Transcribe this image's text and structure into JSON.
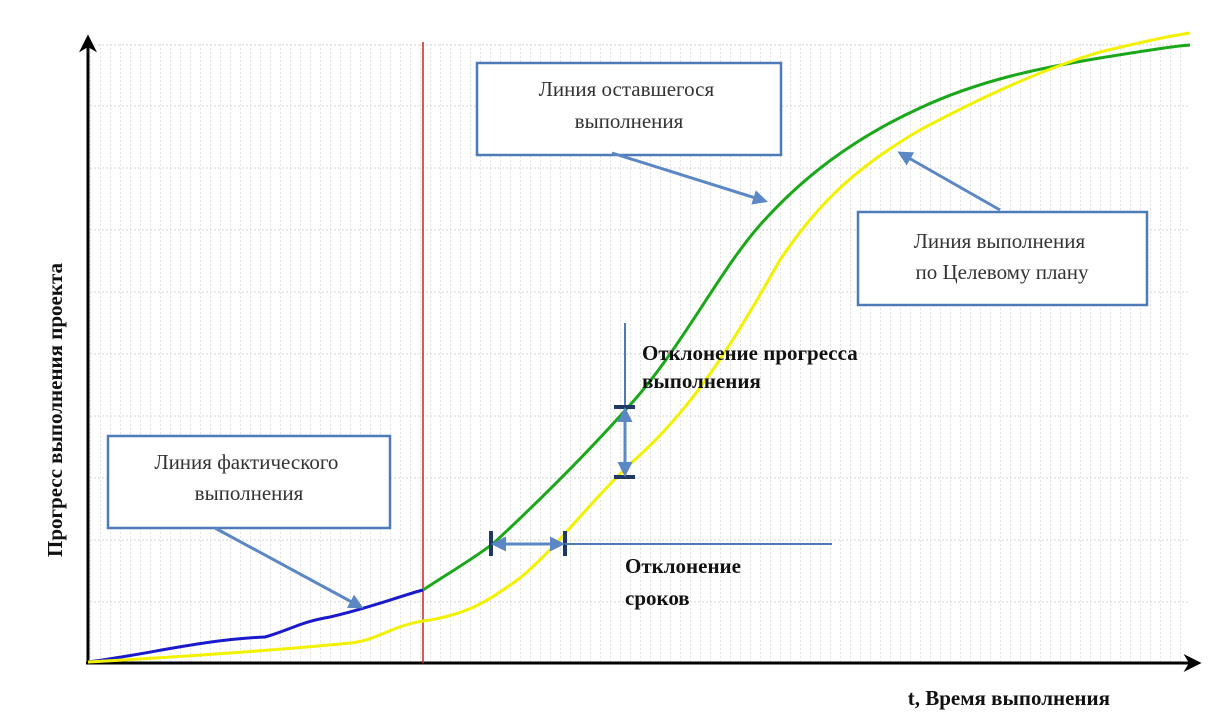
{
  "axes": {
    "x_label": "t, Время выполнения",
    "y_label": "Прогресс выполнения проекта"
  },
  "callouts": [
    {
      "lines": [
        "Линия оставшегося",
        "выполнения"
      ]
    },
    {
      "lines": [
        "Линия выполнения",
        "по Целевому плану"
      ]
    },
    {
      "lines": [
        "Линия фактического",
        "выполнения"
      ]
    }
  ],
  "annotations": [
    {
      "lines": [
        "Отклонение прогресса",
        "выполнения"
      ]
    },
    {
      "lines": [
        "Отклонение",
        "сроков"
      ]
    }
  ]
}
